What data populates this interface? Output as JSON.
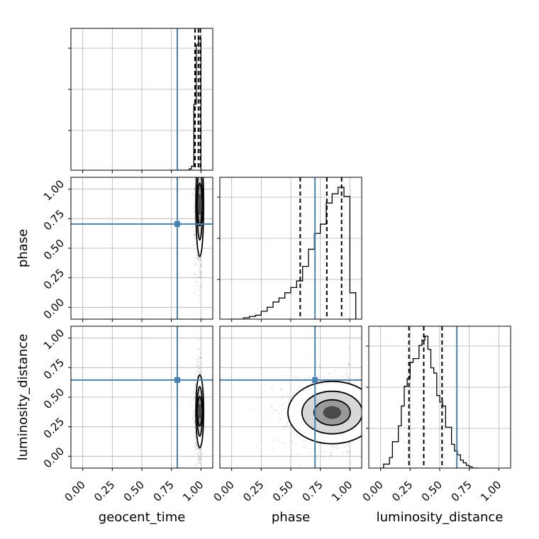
{
  "chart_data": {
    "type": "corner",
    "parameters": [
      "geocent_time",
      "phase",
      "luminosity_distance"
    ],
    "axis_labels": {
      "geocent_time": "geocent_time",
      "phase": "phase",
      "luminosity_distance": "luminosity_distance"
    },
    "tick_values": [
      0.0,
      0.25,
      0.5,
      0.75,
      1.0
    ],
    "tick_labels": [
      "0.00",
      "0.25",
      "0.50",
      "0.75",
      "1.00"
    ],
    "axis_range": [
      -0.1,
      1.1
    ],
    "truth": {
      "geocent_time": 0.8,
      "phase": 0.705,
      "luminosity_distance": 0.645
    },
    "truth_color": "#4682b4",
    "grid": true,
    "histograms": {
      "geocent_time": {
        "bin_edges": [
          0.74,
          0.76,
          0.78,
          0.8,
          0.82,
          0.84,
          0.86,
          0.88,
          0.9,
          0.92,
          0.94,
          0.96,
          0.98,
          1.0,
          1.02
        ],
        "counts": [
          0,
          0,
          0,
          0,
          0,
          0,
          0,
          0,
          0.01,
          0.03,
          0.5,
          0.95,
          1.0,
          0
        ],
        "quantiles": [
          0.95,
          0.978,
          0.995
        ]
      },
      "phase": {
        "bin_edges": [
          0.0,
          0.05,
          0.1,
          0.15,
          0.2,
          0.25,
          0.3,
          0.35,
          0.4,
          0.45,
          0.5,
          0.55,
          0.6,
          0.65,
          0.7,
          0.75,
          0.8,
          0.85,
          0.9,
          0.95,
          1.0,
          1.05
        ],
        "counts": [
          0,
          0,
          0.01,
          0.02,
          0.03,
          0.06,
          0.09,
          0.13,
          0.16,
          0.2,
          0.24,
          0.29,
          0.4,
          0.53,
          0.65,
          0.72,
          0.88,
          0.95,
          1.0,
          0.93,
          0.2
        ],
        "quantiles": [
          0.58,
          0.805,
          0.93
        ]
      },
      "luminosity_distance": {
        "bin_edges": [
          0.0,
          0.025,
          0.05,
          0.075,
          0.1,
          0.125,
          0.15,
          0.175,
          0.2,
          0.225,
          0.25,
          0.275,
          0.3,
          0.325,
          0.35,
          0.375,
          0.4,
          0.425,
          0.45,
          0.475,
          0.5,
          0.525,
          0.55,
          0.575,
          0.6,
          0.625,
          0.65,
          0.675,
          0.7,
          0.725,
          0.75,
          0.775,
          0.8,
          0.825
        ],
        "counts": [
          0,
          0.03,
          0.03,
          0.08,
          0.2,
          0.2,
          0.32,
          0.47,
          0.62,
          0.68,
          0.8,
          0.83,
          0.83,
          0.93,
          0.97,
          1.0,
          0.9,
          0.76,
          0.72,
          0.55,
          0.5,
          0.47,
          0.31,
          0.31,
          0.18,
          0.13,
          0.1,
          0.06,
          0.04,
          0.02,
          0.01,
          0.0,
          0.0
        ],
        "quantiles": [
          0.24,
          0.365,
          0.52
        ]
      }
    },
    "density_panels": [
      {
        "x": "geocent_time",
        "y": "phase",
        "center": [
          0.99,
          0.87
        ],
        "spread": [
          0.015,
          0.2
        ]
      },
      {
        "x": "geocent_time",
        "y": "luminosity_distance",
        "center": [
          0.99,
          0.38
        ],
        "spread": [
          0.015,
          0.14
        ]
      },
      {
        "x": "phase",
        "y": "luminosity_distance",
        "center": [
          0.85,
          0.37
        ],
        "spread": [
          0.17,
          0.12
        ]
      }
    ]
  }
}
